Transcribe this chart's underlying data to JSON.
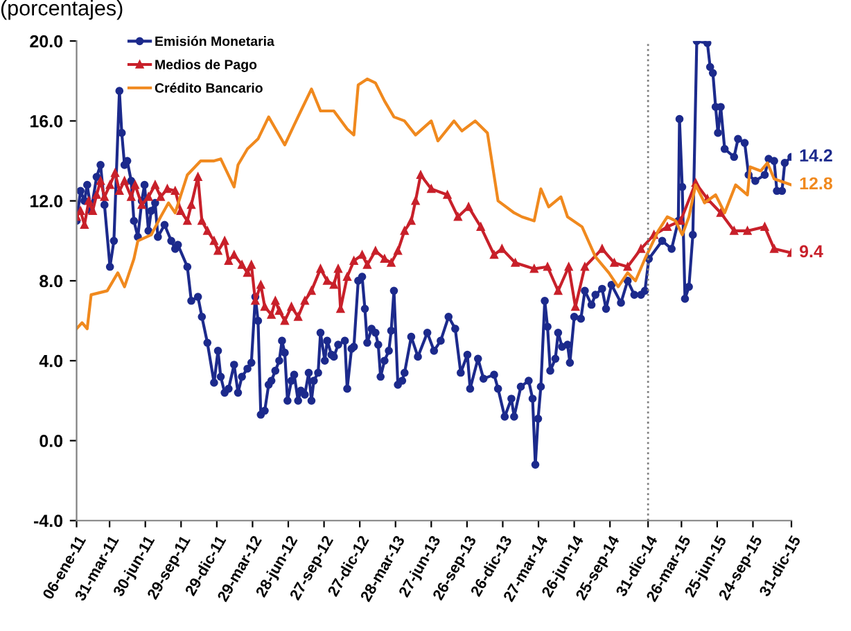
{
  "chart_data": {
    "type": "line",
    "title": "(porcentajes)",
    "xlim": [
      "2011-01-06",
      "2015-12-31"
    ],
    "xticks": [
      {
        "value": "2011-01-06",
        "label": "06-ene-11"
      },
      {
        "value": "2011-03-31",
        "label": "31-mar-11"
      },
      {
        "value": "2011-06-30",
        "label": "30-jun-11"
      },
      {
        "value": "2011-09-29",
        "label": "29-sep-11"
      },
      {
        "value": "2011-12-29",
        "label": "29-dic-11"
      },
      {
        "value": "2012-03-29",
        "label": "29-mar-12"
      },
      {
        "value": "2012-06-28",
        "label": "28-jun-12"
      },
      {
        "value": "2012-09-27",
        "label": "27-sep-12"
      },
      {
        "value": "2012-12-27",
        "label": "27-dic-12"
      },
      {
        "value": "2013-03-28",
        "label": "28-mar-13"
      },
      {
        "value": "2013-06-27",
        "label": "27-jun-13"
      },
      {
        "value": "2013-09-26",
        "label": "26-sep-13"
      },
      {
        "value": "2013-12-26",
        "label": "26-dic-13"
      },
      {
        "value": "2014-03-27",
        "label": "27-mar-14"
      },
      {
        "value": "2014-06-26",
        "label": "26-jun-14"
      },
      {
        "value": "2014-09-25",
        "label": "25-sep-14"
      },
      {
        "value": "2014-12-31",
        "label": "31-dic-14"
      },
      {
        "value": "2015-03-26",
        "label": "26-mar-15"
      },
      {
        "value": "2015-06-25",
        "label": "25-jun-15"
      },
      {
        "value": "2015-09-24",
        "label": "24-sep-15"
      },
      {
        "value": "2015-12-31",
        "label": "31-dic-15"
      }
    ],
    "ylim": [
      -4,
      20
    ],
    "yticks": [
      {
        "value": -4,
        "label": "-4.0"
      },
      {
        "value": 0,
        "label": "0.0"
      },
      {
        "value": 4,
        "label": "4.0"
      },
      {
        "value": 8,
        "label": "8.0"
      },
      {
        "value": 12,
        "label": "12.0"
      },
      {
        "value": 16,
        "label": "16.0"
      },
      {
        "value": 20,
        "label": "20.0"
      }
    ],
    "grid": false,
    "legend": "top left",
    "line_style": "solid",
    "ref_lines": [
      {
        "axis": "x",
        "value": "2014-12-31",
        "color": "#808080",
        "line_style": "dotted"
      }
    ],
    "annotations": [
      {
        "text": "14.2",
        "x": "2015-12-31",
        "y": 14.2
      },
      {
        "text": "9.4",
        "x": "2015-12-31",
        "y": 9.4
      },
      {
        "text": "12.8",
        "x": "2015-12-31",
        "y": 12.8
      }
    ],
    "series": [
      {
        "name": "Emisión Monetaria",
        "color": "#1c2a8c",
        "marker": "circle",
        "x": [
          "2011-01-06",
          "2011-01-16",
          "2011-01-26",
          "2011-02-02",
          "2011-02-12",
          "2011-02-26",
          "2011-03-08",
          "2011-03-18",
          "2011-04-01",
          "2011-04-11",
          "2011-04-25",
          "2011-05-01",
          "2011-05-08",
          "2011-05-15",
          "2011-05-25",
          "2011-06-01",
          "2011-06-11",
          "2011-06-21",
          "2011-06-28",
          "2011-07-08",
          "2011-07-15",
          "2011-07-25",
          "2011-08-01",
          "2011-08-18",
          "2011-09-04",
          "2011-09-14",
          "2011-09-21",
          "2011-10-15",
          "2011-10-25",
          "2011-11-11",
          "2011-11-21",
          "2011-12-05",
          "2011-12-22",
          "2012-01-01",
          "2012-01-08",
          "2012-01-18",
          "2012-01-28",
          "2012-02-11",
          "2012-02-21",
          "2012-03-02",
          "2012-03-16",
          "2012-03-26",
          "2012-04-05",
          "2012-04-12",
          "2012-04-19",
          "2012-04-29",
          "2012-05-09",
          "2012-05-16",
          "2012-05-26",
          "2012-06-05",
          "2012-06-12",
          "2012-06-19",
          "2012-06-26",
          "2012-07-06",
          "2012-07-13",
          "2012-07-23",
          "2012-07-30",
          "2012-08-09",
          "2012-08-19",
          "2012-08-26",
          "2012-09-01",
          "2012-09-12",
          "2012-09-18",
          "2012-09-29",
          "2012-10-05",
          "2012-10-16",
          "2012-10-22",
          "2012-11-02",
          "2012-11-19",
          "2012-11-25",
          "2012-12-06",
          "2012-12-12",
          "2012-12-23",
          "2013-01-02",
          "2013-01-09",
          "2013-01-15",
          "2013-01-26",
          "2013-02-05",
          "2013-02-12",
          "2013-02-18",
          "2013-02-28",
          "2013-03-11",
          "2013-03-17",
          "2013-03-24",
          "2013-04-03",
          "2013-04-14",
          "2013-04-20",
          "2013-05-07",
          "2013-05-24",
          "2013-06-17",
          "2013-07-04",
          "2013-07-21",
          "2013-08-10",
          "2013-08-27",
          "2013-09-10",
          "2013-09-27",
          "2013-10-04",
          "2013-10-24",
          "2013-11-07",
          "2013-12-04",
          "2013-12-14",
          "2013-12-31",
          "2014-01-17",
          "2014-01-24",
          "2014-02-10",
          "2014-03-02",
          "2014-03-12",
          "2014-03-19",
          "2014-03-26",
          "2014-04-02",
          "2014-04-12",
          "2014-04-19",
          "2014-04-26",
          "2014-05-09",
          "2014-05-16",
          "2014-05-26",
          "2014-06-09",
          "2014-06-15",
          "2014-06-26",
          "2014-07-13",
          "2014-07-23",
          "2014-08-09",
          "2014-08-19",
          "2014-09-05",
          "2014-09-15",
          "2014-09-29",
          "2014-10-23",
          "2014-11-09",
          "2014-11-26",
          "2014-12-13",
          "2014-12-23",
          "2015-01-02",
          "2015-02-05",
          "2015-03-01",
          "2015-03-18",
          "2015-03-21",
          "2015-03-28",
          "2015-04-04",
          "2015-04-14",
          "2015-04-24",
          "2015-05-04",
          "2015-05-31",
          "2015-06-07",
          "2015-06-14",
          "2015-06-21",
          "2015-06-27",
          "2015-07-04",
          "2015-07-14",
          "2015-08-07",
          "2015-08-17",
          "2015-09-03",
          "2015-09-13",
          "2015-09-30",
          "2015-10-24",
          "2015-11-03",
          "2015-11-17",
          "2015-11-24",
          "2015-12-07",
          "2015-12-14",
          "2015-12-31"
        ],
        "values": [
          11.0,
          12.5,
          12.0,
          12.8,
          11.5,
          13.2,
          13.8,
          11.8,
          8.7,
          10.0,
          17.5,
          15.4,
          13.8,
          14.0,
          13.0,
          11.0,
          10.2,
          12.0,
          12.8,
          10.5,
          11.5,
          11.9,
          10.2,
          10.8,
          10.0,
          9.6,
          9.8,
          8.7,
          7.0,
          7.2,
          6.2,
          4.9,
          2.9,
          4.5,
          3.2,
          2.4,
          2.6,
          3.8,
          2.4,
          3.2,
          3.6,
          3.9,
          7.2,
          6.0,
          1.3,
          1.5,
          2.8,
          3.0,
          3.5,
          4.0,
          5.0,
          4.4,
          2.0,
          3.0,
          3.3,
          2.0,
          2.5,
          2.3,
          3.4,
          2.0,
          3.0,
          3.4,
          5.4,
          4.0,
          5.0,
          4.3,
          4.2,
          4.8,
          5.0,
          2.6,
          4.6,
          4.7,
          8.0,
          8.2,
          6.6,
          4.9,
          5.6,
          5.4,
          4.8,
          3.2,
          4.0,
          4.5,
          5.5,
          7.5,
          2.8,
          3.0,
          3.4,
          5.2,
          4.2,
          5.4,
          4.5,
          5.0,
          6.2,
          5.6,
          3.4,
          4.3,
          2.6,
          4.1,
          3.1,
          3.3,
          2.6,
          1.2,
          2.1,
          1.2,
          2.7,
          3.0,
          2.1,
          -1.2,
          1.1,
          2.7,
          7.0,
          5.7,
          3.5,
          4.1,
          5.4,
          4.7,
          4.8,
          3.9,
          6.2,
          6.1,
          7.5,
          6.8,
          7.3,
          7.6,
          6.6,
          7.8,
          6.9,
          8.0,
          7.3,
          7.3,
          7.5,
          9.1,
          10.0,
          9.6,
          11.0,
          16.1,
          12.7,
          7.1,
          7.7,
          10.3,
          20.0,
          19.9,
          18.7,
          18.4,
          16.7,
          15.4,
          16.7,
          14.6,
          14.2,
          15.1,
          14.9,
          13.3,
          13.0,
          13.3,
          14.1,
          14.0,
          12.5,
          12.5,
          13.9,
          14.2
        ]
      },
      {
        "name": "Medios de Pago",
        "color": "#c8202a",
        "marker": "triangle",
        "x": [
          "2011-01-06",
          "2011-01-16",
          "2011-01-26",
          "2011-02-06",
          "2011-02-16",
          "2011-02-26",
          "2011-03-08",
          "2011-03-18",
          "2011-04-01",
          "2011-04-14",
          "2011-04-25",
          "2011-05-08",
          "2011-05-25",
          "2011-06-04",
          "2011-06-21",
          "2011-07-08",
          "2011-07-25",
          "2011-08-08",
          "2011-08-25",
          "2011-09-14",
          "2011-09-28",
          "2011-10-15",
          "2011-10-25",
          "2011-11-11",
          "2011-11-21",
          "2011-12-05",
          "2011-12-22",
          "2012-01-01",
          "2012-01-18",
          "2012-01-28",
          "2012-02-11",
          "2012-03-02",
          "2012-03-16",
          "2012-03-26",
          "2012-04-05",
          "2012-04-19",
          "2012-04-29",
          "2012-05-16",
          "2012-05-26",
          "2012-06-05",
          "2012-06-19",
          "2012-07-06",
          "2012-07-23",
          "2012-08-09",
          "2012-08-26",
          "2012-09-18",
          "2012-10-05",
          "2012-10-22",
          "2012-11-02",
          "2012-11-08",
          "2012-11-25",
          "2012-12-12",
          "2013-01-02",
          "2013-01-15",
          "2013-02-05",
          "2013-02-28",
          "2013-03-17",
          "2013-04-03",
          "2013-04-20",
          "2013-05-07",
          "2013-05-18",
          "2013-05-31",
          "2013-06-27",
          "2013-08-07",
          "2013-09-03",
          "2013-09-30",
          "2013-10-31",
          "2013-12-04",
          "2013-12-24",
          "2014-01-27",
          "2014-03-16",
          "2014-04-19",
          "2014-05-16",
          "2014-06-12",
          "2014-06-29",
          "2014-07-23",
          "2014-09-05",
          "2014-10-06",
          "2014-11-09",
          "2014-12-13",
          "2015-01-15",
          "2015-02-18",
          "2015-03-24",
          "2015-05-01",
          "2015-05-31",
          "2015-07-04",
          "2015-08-07",
          "2015-09-10",
          "2015-10-24",
          "2015-11-17",
          "2015-12-31"
        ],
        "values": [
          11.2,
          11.5,
          10.8,
          12.0,
          11.5,
          12.3,
          13.0,
          12.2,
          12.8,
          13.4,
          12.5,
          13.0,
          12.2,
          12.8,
          11.8,
          12.2,
          12.8,
          12.2,
          12.6,
          12.5,
          11.5,
          11.0,
          11.8,
          13.2,
          11.0,
          10.5,
          10.0,
          9.5,
          10.0,
          9.0,
          9.3,
          8.8,
          8.4,
          8.8,
          7.0,
          7.8,
          6.7,
          6.3,
          7.0,
          6.5,
          6.0,
          6.7,
          6.2,
          7.0,
          7.5,
          8.6,
          8.0,
          7.8,
          8.6,
          6.6,
          8.2,
          9.0,
          9.3,
          8.8,
          9.5,
          9.1,
          8.9,
          9.5,
          10.5,
          11.0,
          12.0,
          13.3,
          12.6,
          12.3,
          11.2,
          11.7,
          10.7,
          9.3,
          9.6,
          8.9,
          8.6,
          8.7,
          7.5,
          8.7,
          6.7,
          8.7,
          9.6,
          8.9,
          8.7,
          9.6,
          10.3,
          10.7,
          11.0,
          12.9,
          12.1,
          11.4,
          10.5,
          10.5,
          10.7,
          9.6,
          9.4
        ]
      },
      {
        "name": "Crédito Bancario",
        "color": "#f0891e",
        "marker": "none",
        "x": [
          "2011-01-06",
          "2011-01-20",
          "2011-02-02",
          "2011-02-12",
          "2011-03-25",
          "2011-04-21",
          "2011-05-08",
          "2011-06-01",
          "2011-06-11",
          "2011-07-15",
          "2011-08-08",
          "2011-08-28",
          "2011-09-14",
          "2011-10-15",
          "2011-11-18",
          "2011-12-22",
          "2012-01-08",
          "2012-02-11",
          "2012-02-21",
          "2012-03-16",
          "2012-04-12",
          "2012-05-09",
          "2012-06-19",
          "2012-07-13",
          "2012-07-30",
          "2012-08-26",
          "2012-09-18",
          "2012-10-22",
          "2012-11-25",
          "2012-12-12",
          "2012-12-23",
          "2013-01-15",
          "2013-02-05",
          "2013-02-28",
          "2013-03-24",
          "2013-04-20",
          "2013-05-18",
          "2013-06-27",
          "2013-07-14",
          "2013-08-24",
          "2013-09-13",
          "2013-10-17",
          "2013-11-17",
          "2013-12-14",
          "2014-01-24",
          "2014-02-13",
          "2014-03-16",
          "2014-04-02",
          "2014-04-22",
          "2014-05-23",
          "2014-06-09",
          "2014-07-16",
          "2014-08-19",
          "2014-09-22",
          "2014-10-16",
          "2014-11-09",
          "2014-11-29",
          "2014-12-23",
          "2015-01-26",
          "2015-02-18",
          "2015-03-11",
          "2015-03-28",
          "2015-04-14",
          "2015-05-01",
          "2015-05-24",
          "2015-06-21",
          "2015-07-14",
          "2015-08-11",
          "2015-09-10",
          "2015-09-17",
          "2015-10-14",
          "2015-10-31",
          "2015-11-17",
          "2015-12-31"
        ],
        "values": [
          5.6,
          5.9,
          5.6,
          7.3,
          7.5,
          8.4,
          7.7,
          9.1,
          10.0,
          10.3,
          11.2,
          11.9,
          11.4,
          13.3,
          14.0,
          14.0,
          14.1,
          12.7,
          13.8,
          14.6,
          15.1,
          16.2,
          14.8,
          15.8,
          16.5,
          17.6,
          16.5,
          16.5,
          15.6,
          15.3,
          17.8,
          18.1,
          17.9,
          17.0,
          16.2,
          16.0,
          15.3,
          16.0,
          15.0,
          16.0,
          15.5,
          16.0,
          15.4,
          12.0,
          11.4,
          11.2,
          11.0,
          12.6,
          11.7,
          12.2,
          11.2,
          10.7,
          9.2,
          8.4,
          7.7,
          8.4,
          8.0,
          9.1,
          10.5,
          11.2,
          11.0,
          10.3,
          11.2,
          12.8,
          11.9,
          12.3,
          11.4,
          12.8,
          12.3,
          13.7,
          13.5,
          13.9,
          13.1,
          12.8
        ]
      }
    ]
  }
}
